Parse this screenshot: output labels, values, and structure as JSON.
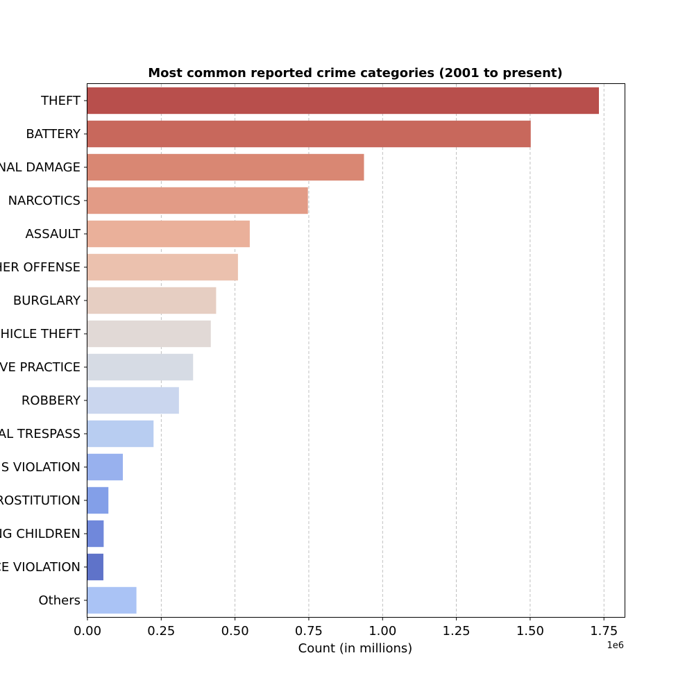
{
  "chart_data": {
    "type": "bar",
    "orientation": "horizontal",
    "title": "Most common reported crime categories (2001 to present)",
    "xlabel": "Count (in millions)",
    "ylabel": "",
    "x_offset_label": "1e6",
    "xlim": [
      0,
      1820000
    ],
    "x_ticks": [
      0,
      250000,
      500000,
      750000,
      1000000,
      1250000,
      1500000,
      1750000
    ],
    "x_tick_labels": [
      "0.00",
      "0.25",
      "0.50",
      "0.75",
      "1.00",
      "1.25",
      "1.50",
      "1.75"
    ],
    "grid": "vertical dashed",
    "categories": [
      "THEFT",
      "BATTERY",
      "CRIMINAL DAMAGE",
      "NARCOTICS",
      "ASSAULT",
      "OTHER OFFENSE",
      "BURGLARY",
      "MOTOR VEHICLE THEFT",
      "DECEPTIVE PRACTICE",
      "ROBBERY",
      "CRIMINAL TRESPASS",
      "WEAPONS VIOLATION",
      "PROSTITUTION",
      "OFFENSE INVOLVING CHILDREN",
      "PUBLIC PEACE VIOLATION",
      "Others"
    ],
    "values": [
      1733000,
      1502000,
      937000,
      747000,
      550000,
      510000,
      436000,
      418000,
      358000,
      310000,
      224000,
      120000,
      71000,
      55000,
      54000,
      166000
    ],
    "colors": [
      "#b84f4c",
      "#c8685c",
      "#d98773",
      "#e29b86",
      "#eab09a",
      "#ebc1ae",
      "#e6cec2",
      "#e1d9d6",
      "#d6dbe4",
      "#cad6ee",
      "#b8cdf1",
      "#98b1ee",
      "#839fe8",
      "#7088db",
      "#5f73c9",
      "#aac3f5"
    ]
  }
}
